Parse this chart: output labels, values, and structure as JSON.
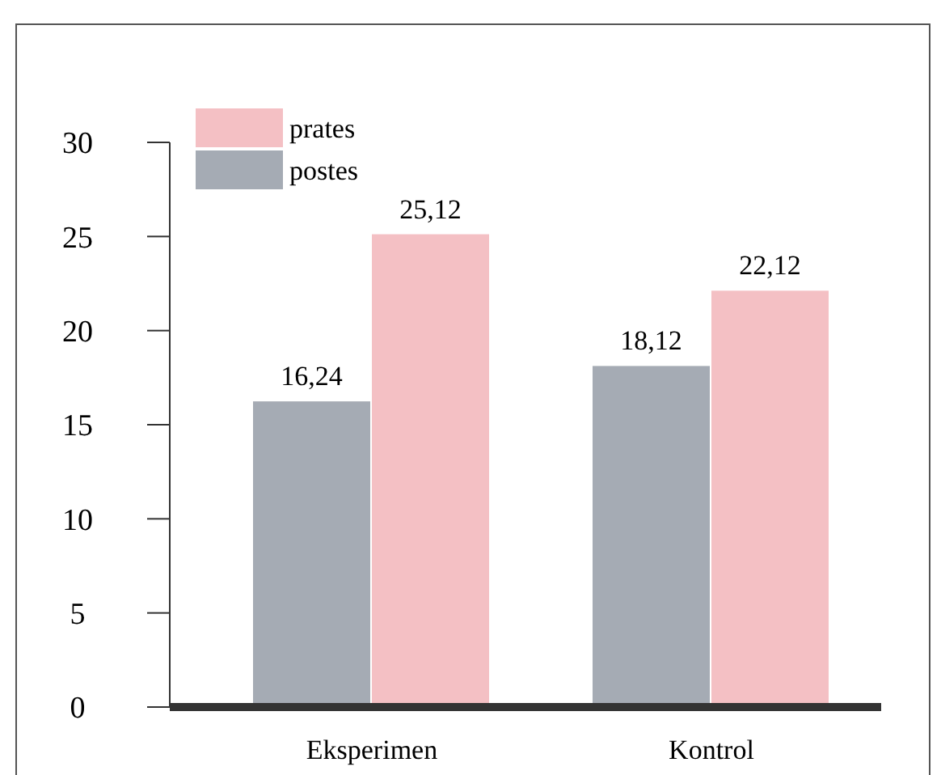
{
  "chart_data": {
    "type": "bar",
    "categories": [
      "Eksperimen",
      "Kontrol"
    ],
    "series": [
      {
        "name": "postes",
        "color": "#a5abb4",
        "values": [
          16.24,
          18.12
        ],
        "value_labels": [
          "16,24",
          "18,12"
        ]
      },
      {
        "name": "prates",
        "color": "#f4c0c4",
        "values": [
          25.12,
          22.12
        ],
        "value_labels": [
          "25,12",
          "22,12"
        ]
      }
    ],
    "ylim": [
      0,
      30
    ],
    "yticks": [
      0,
      5,
      10,
      15,
      20,
      25,
      30
    ],
    "grid": false,
    "legend": "top left"
  }
}
